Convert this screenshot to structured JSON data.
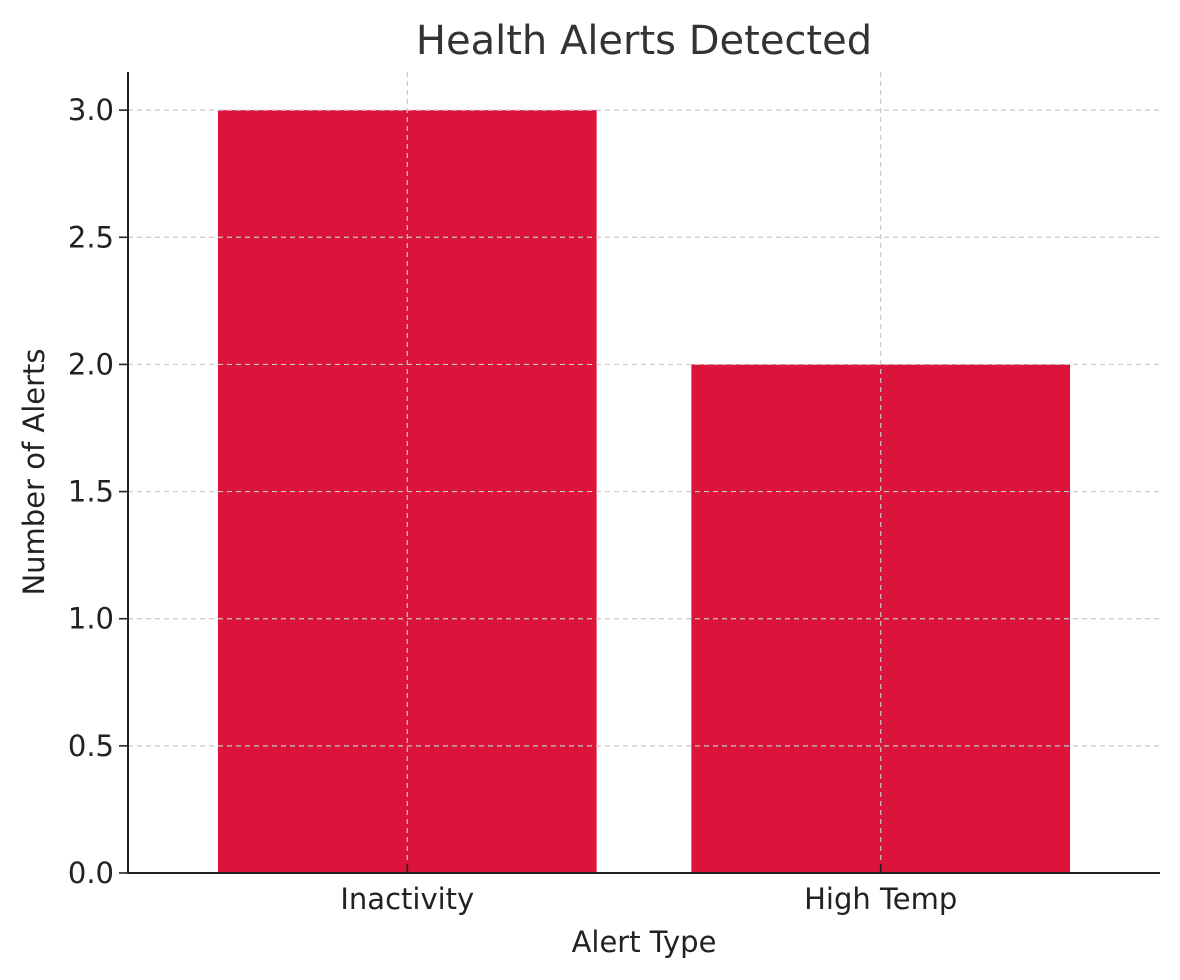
{
  "chart_data": {
    "type": "bar",
    "title": "Health Alerts Detected",
    "xlabel": "Alert Type",
    "ylabel": "Number of Alerts",
    "categories": [
      "Inactivity",
      "High Temp"
    ],
    "values": [
      3,
      2
    ],
    "ylim": [
      0,
      3.15
    ],
    "yticks": [
      "0.0",
      "0.5",
      "1.0",
      "1.5",
      "2.0",
      "2.5",
      "3.0"
    ],
    "grid": true,
    "colors": {
      "bar": "#dc143c",
      "grid": "#c8c8c8",
      "axis": "#222222"
    }
  }
}
